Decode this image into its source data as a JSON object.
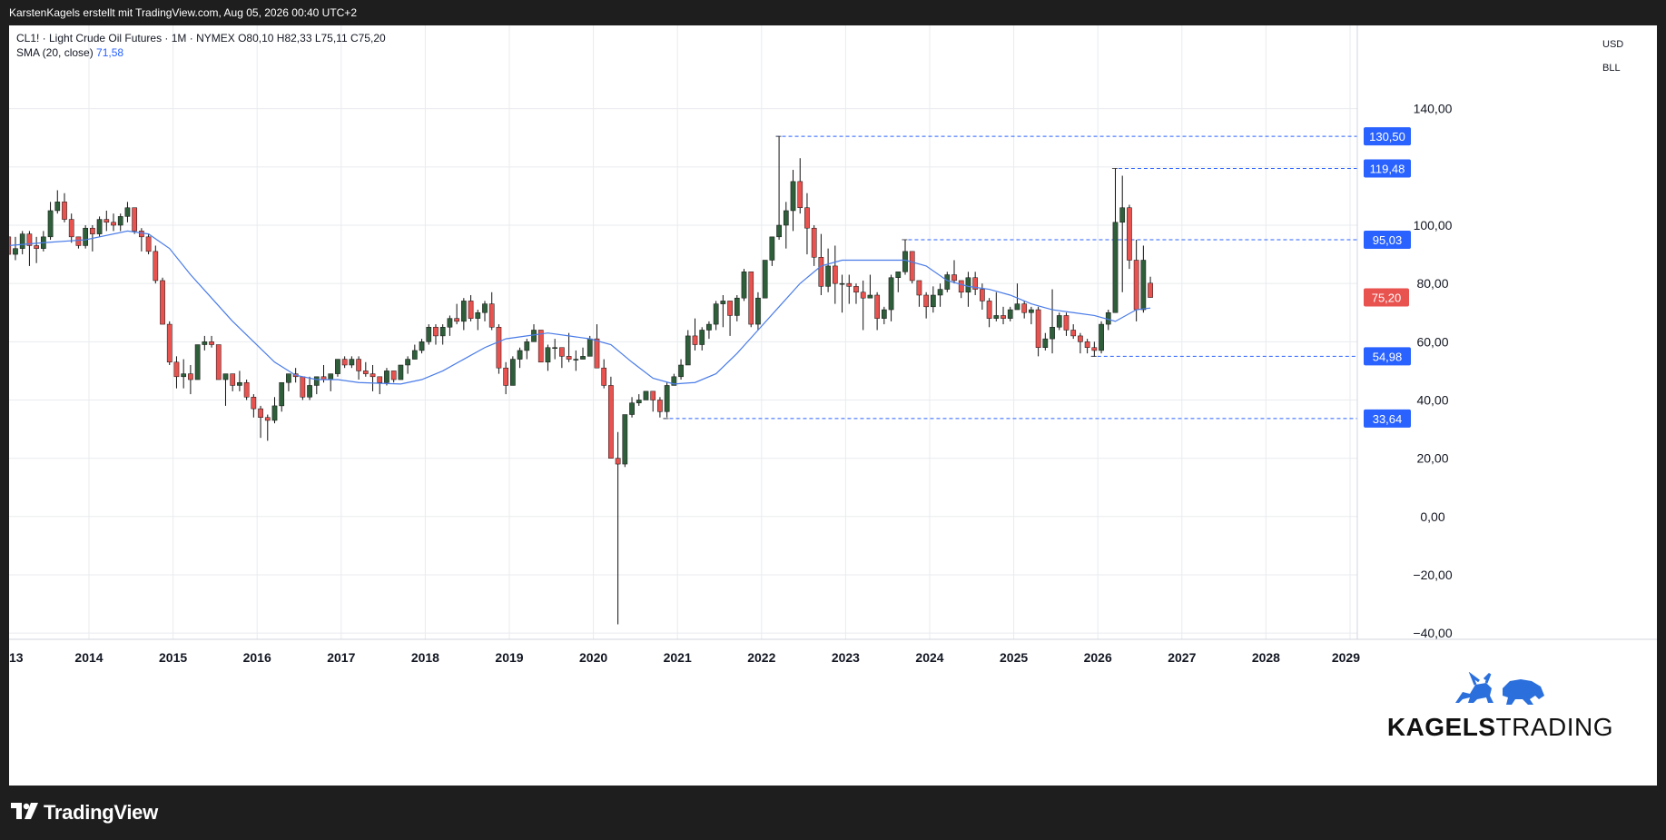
{
  "header": {
    "caption": "KarstenKagels erstellt mit TradingView.com, Aug 05, 2026 00:40 UTC+2"
  },
  "legend": {
    "symbol_line": "CL1! · Light Crude Oil Futures · 1M · NYMEX",
    "ohlc": "O80,10  H82,33  L75,11  C75,20",
    "sma_label": "SMA (20, close)",
    "sma_value": "71,58"
  },
  "price_axis": {
    "currency": "USD",
    "unit": "BLL",
    "ticks": [
      "140,00",
      "100,00",
      "80,00",
      "60,00",
      "40,00",
      "20,00",
      "0,00",
      "−20,00",
      "−40,00"
    ]
  },
  "levels": [
    {
      "value": 130.5,
      "label": "130,50",
      "start_year": 2022.17
    },
    {
      "value": 119.48,
      "label": "119,48",
      "start_year": 2026.17
    },
    {
      "value": 95.03,
      "label": "95,03",
      "start_year": 2023.67
    },
    {
      "value": 54.98,
      "label": "54,98",
      "start_year": 2025.92
    },
    {
      "value": 33.64,
      "label": "33,64",
      "start_year": 2020.83
    }
  ],
  "last_price": {
    "value": 75.2,
    "label": "75,20"
  },
  "time_axis": {
    "labels": [
      "13",
      "2014",
      "2015",
      "2016",
      "2017",
      "2018",
      "2019",
      "2020",
      "2021",
      "2022",
      "2023",
      "2024",
      "2025",
      "2026",
      "2027",
      "2028",
      "2029"
    ]
  },
  "colors": {
    "up": "#2e5e3a",
    "down": "#e8524f",
    "sma": "#4a7ce8",
    "level": "#2962ff",
    "grid": "#e9ebef"
  },
  "watermark": {
    "brand_bold": "KAGELS",
    "brand_light": "TRADING"
  },
  "footer": {
    "logo_text": "TradingView"
  },
  "chart_data": {
    "type": "candlestick",
    "title": "CL1! · Light Crude Oil Futures · 1M · NYMEX",
    "x_unit": "month",
    "ylim": [
      -40,
      140
    ],
    "grid": true,
    "candles": [
      [
        "2013-01",
        96,
        98,
        89,
        90
      ],
      [
        "2013-02",
        90,
        96,
        88,
        92
      ],
      [
        "2013-03",
        92,
        98,
        90,
        97
      ],
      [
        "2013-04",
        97,
        98,
        86,
        93
      ],
      [
        "2013-05",
        93,
        96,
        87,
        92
      ],
      [
        "2013-06",
        92,
        98,
        91,
        96
      ],
      [
        "2013-07",
        96,
        108,
        95,
        105
      ],
      [
        "2013-08",
        105,
        112,
        104,
        108
      ],
      [
        "2013-09",
        108,
        111,
        101,
        102
      ],
      [
        "2013-10",
        102,
        104,
        94,
        96
      ],
      [
        "2013-11",
        96,
        96,
        92,
        93
      ],
      [
        "2013-12",
        93,
        100,
        92,
        99
      ],
      [
        "2014-01",
        99,
        100,
        91,
        97
      ],
      [
        "2014-02",
        97,
        103,
        96,
        102
      ],
      [
        "2014-03",
        102,
        105,
        98,
        101
      ],
      [
        "2014-04",
        101,
        104,
        98,
        100
      ],
      [
        "2014-05",
        100,
        104,
        98,
        103
      ],
      [
        "2014-06",
        103,
        108,
        101,
        106
      ],
      [
        "2014-07",
        106,
        106,
        97,
        98
      ],
      [
        "2014-08",
        98,
        99,
        91,
        96
      ],
      [
        "2014-09",
        96,
        97,
        90,
        91
      ],
      [
        "2014-10",
        91,
        93,
        80,
        81
      ],
      [
        "2014-11",
        81,
        82,
        66,
        66
      ],
      [
        "2014-12",
        66,
        67,
        52,
        53
      ],
      [
        "2015-01",
        53,
        55,
        44,
        48
      ],
      [
        "2015-02",
        48,
        54,
        44,
        49
      ],
      [
        "2015-03",
        49,
        52,
        42,
        47
      ],
      [
        "2015-04",
        47,
        59,
        47,
        59
      ],
      [
        "2015-05",
        59,
        62,
        57,
        60
      ],
      [
        "2015-06",
        60,
        62,
        58,
        59
      ],
      [
        "2015-07",
        59,
        59,
        47,
        47
      ],
      [
        "2015-08",
        47,
        49,
        38,
        49
      ],
      [
        "2015-09",
        49,
        49,
        43,
        45
      ],
      [
        "2015-10",
        45,
        50,
        43,
        46
      ],
      [
        "2015-11",
        46,
        47,
        40,
        41
      ],
      [
        "2015-12",
        41,
        42,
        34,
        37
      ],
      [
        "2016-01",
        37,
        38,
        27,
        34
      ],
      [
        "2016-02",
        34,
        35,
        26,
        33
      ],
      [
        "2016-03",
        33,
        41,
        32,
        38
      ],
      [
        "2016-04",
        38,
        46,
        36,
        46
      ],
      [
        "2016-05",
        46,
        49,
        43,
        49
      ],
      [
        "2016-06",
        49,
        51,
        46,
        48
      ],
      [
        "2016-07",
        48,
        48,
        40,
        41
      ],
      [
        "2016-08",
        41,
        48,
        40,
        45
      ],
      [
        "2016-09",
        45,
        48,
        42,
        48
      ],
      [
        "2016-10",
        48,
        52,
        46,
        47
      ],
      [
        "2016-11",
        47,
        49,
        43,
        49
      ],
      [
        "2016-12",
        49,
        54,
        48,
        54
      ],
      [
        "2017-01",
        54,
        55,
        51,
        52
      ],
      [
        "2017-02",
        52,
        55,
        51,
        54
      ],
      [
        "2017-03",
        54,
        55,
        47,
        50
      ],
      [
        "2017-04",
        50,
        53,
        48,
        49
      ],
      [
        "2017-05",
        49,
        52,
        43,
        48
      ],
      [
        "2017-06",
        48,
        48,
        42,
        46
      ],
      [
        "2017-07",
        46,
        51,
        45,
        50
      ],
      [
        "2017-08",
        50,
        50,
        46,
        47
      ],
      [
        "2017-09",
        47,
        52,
        47,
        52
      ],
      [
        "2017-10",
        52,
        55,
        49,
        54
      ],
      [
        "2017-11",
        54,
        59,
        54,
        57
      ],
      [
        "2017-12",
        57,
        61,
        56,
        60
      ],
      [
        "2018-01",
        60,
        66,
        59,
        65
      ],
      [
        "2018-02",
        65,
        66,
        59,
        62
      ],
      [
        "2018-03",
        62,
        66,
        59,
        65
      ],
      [
        "2018-04",
        65,
        69,
        62,
        68
      ],
      [
        "2018-05",
        68,
        73,
        66,
        67
      ],
      [
        "2018-06",
        67,
        75,
        64,
        74
      ],
      [
        "2018-07",
        74,
        76,
        67,
        68
      ],
      [
        "2018-08",
        68,
        71,
        64,
        70
      ],
      [
        "2018-09",
        70,
        74,
        67,
        73
      ],
      [
        "2018-10",
        73,
        77,
        64,
        65
      ],
      [
        "2018-11",
        65,
        66,
        49,
        51
      ],
      [
        "2018-12",
        51,
        53,
        42,
        45
      ],
      [
        "2019-01",
        45,
        55,
        45,
        54
      ],
      [
        "2019-02",
        54,
        58,
        51,
        57
      ],
      [
        "2019-03",
        57,
        61,
        54,
        60
      ],
      [
        "2019-04",
        60,
        66,
        60,
        64
      ],
      [
        "2019-05",
        64,
        64,
        53,
        53
      ],
      [
        "2019-06",
        53,
        59,
        50,
        58
      ],
      [
        "2019-07",
        58,
        61,
        54,
        58
      ],
      [
        "2019-08",
        58,
        58,
        51,
        55
      ],
      [
        "2019-09",
        55,
        63,
        53,
        54
      ],
      [
        "2019-10",
        54,
        57,
        50,
        54
      ],
      [
        "2019-11",
        54,
        58,
        54,
        55
      ],
      [
        "2019-12",
        55,
        62,
        55,
        61
      ],
      [
        "2020-01",
        61,
        66,
        51,
        51
      ],
      [
        "2020-02",
        51,
        54,
        44,
        45
      ],
      [
        "2020-03",
        45,
        48,
        20,
        20
      ],
      [
        "2020-04",
        20,
        29,
        -37,
        18
      ],
      [
        "2020-05",
        18,
        35,
        17,
        35
      ],
      [
        "2020-06",
        35,
        41,
        34,
        39
      ],
      [
        "2020-07",
        39,
        42,
        38,
        40
      ],
      [
        "2020-08",
        40,
        43,
        40,
        43
      ],
      [
        "2020-09",
        43,
        43,
        36,
        40
      ],
      [
        "2020-10",
        40,
        41,
        34,
        36
      ],
      [
        "2020-11",
        36,
        46,
        34,
        45
      ],
      [
        "2020-12",
        45,
        49,
        45,
        48
      ],
      [
        "2021-01",
        48,
        54,
        47,
        52
      ],
      [
        "2021-02",
        52,
        64,
        52,
        62
      ],
      [
        "2021-03",
        62,
        68,
        57,
        59
      ],
      [
        "2021-04",
        59,
        65,
        57,
        64
      ],
      [
        "2021-05",
        64,
        67,
        61,
        66
      ],
      [
        "2021-06",
        66,
        74,
        64,
        73
      ],
      [
        "2021-07",
        73,
        76,
        65,
        74
      ],
      [
        "2021-08",
        74,
        74,
        62,
        69
      ],
      [
        "2021-09",
        69,
        76,
        67,
        75
      ],
      [
        "2021-10",
        75,
        85,
        74,
        84
      ],
      [
        "2021-11",
        84,
        84,
        65,
        66
      ],
      [
        "2021-12",
        66,
        77,
        64,
        75
      ],
      [
        "2022-01",
        75,
        88,
        75,
        88
      ],
      [
        "2022-02",
        88,
        96,
        86,
        96
      ],
      [
        "2022-03",
        96,
        130.5,
        95,
        100
      ],
      [
        "2022-04",
        100,
        108,
        92,
        105
      ],
      [
        "2022-05",
        105,
        119,
        98,
        115
      ],
      [
        "2022-06",
        115,
        123,
        104,
        106
      ],
      [
        "2022-07",
        106,
        111,
        90,
        99
      ],
      [
        "2022-08",
        99,
        100,
        86,
        89
      ],
      [
        "2022-09",
        89,
        97,
        76,
        79
      ],
      [
        "2022-10",
        79,
        92,
        77,
        86
      ],
      [
        "2022-11",
        86,
        93,
        73,
        80
      ],
      [
        "2022-12",
        80,
        83,
        70,
        80
      ],
      [
        "2023-01",
        80,
        83,
        73,
        79
      ],
      [
        "2023-02",
        79,
        80,
        73,
        77
      ],
      [
        "2023-03",
        77,
        81,
        64,
        75
      ],
      [
        "2023-04",
        75,
        83,
        75,
        76
      ],
      [
        "2023-05",
        76,
        77,
        64,
        68
      ],
      [
        "2023-06",
        68,
        72,
        66,
        71
      ],
      [
        "2023-07",
        71,
        83,
        67,
        82
      ],
      [
        "2023-08",
        82,
        84,
        77,
        84
      ],
      [
        "2023-09",
        84,
        95.03,
        83,
        91
      ],
      [
        "2023-10",
        91,
        91,
        80,
        81
      ],
      [
        "2023-11",
        81,
        81,
        72,
        76
      ],
      [
        "2023-12",
        76,
        77,
        68,
        72
      ],
      [
        "2024-01",
        72,
        79,
        70,
        76
      ],
      [
        "2024-02",
        76,
        80,
        72,
        78
      ],
      [
        "2024-03",
        78,
        84,
        77,
        83
      ],
      [
        "2024-04",
        83,
        88,
        80,
        81
      ],
      [
        "2024-05",
        81,
        81,
        75,
        77
      ],
      [
        "2024-06",
        77,
        84,
        72,
        82
      ],
      [
        "2024-07",
        82,
        84,
        76,
        78
      ],
      [
        "2024-08",
        78,
        80,
        71,
        74
      ],
      [
        "2024-09",
        74,
        75,
        65,
        68
      ],
      [
        "2024-10",
        68,
        77,
        67,
        69
      ],
      [
        "2024-11",
        69,
        72,
        66,
        68
      ],
      [
        "2024-12",
        68,
        72,
        67,
        71
      ],
      [
        "2025-01",
        71,
        80,
        71,
        73
      ],
      [
        "2025-02",
        73,
        74,
        68,
        70
      ],
      [
        "2025-03",
        70,
        72,
        66,
        71
      ],
      [
        "2025-04",
        71,
        72,
        55,
        58
      ],
      [
        "2025-05",
        58,
        63,
        57,
        61
      ],
      [
        "2025-06",
        61,
        78,
        56,
        65
      ],
      [
        "2025-07",
        65,
        70,
        64,
        69
      ],
      [
        "2025-08",
        69,
        70,
        62,
        64
      ],
      [
        "2025-09",
        64,
        66,
        61,
        62
      ],
      [
        "2025-10",
        62,
        63,
        56,
        60
      ],
      [
        "2025-11",
        60,
        61,
        56,
        58
      ],
      [
        "2025-12",
        58,
        60,
        54.98,
        57
      ],
      [
        "2026-01",
        57,
        67,
        56,
        66
      ],
      [
        "2026-02",
        66,
        71,
        64,
        70
      ],
      [
        "2026-03",
        70,
        119.48,
        70,
        101
      ],
      [
        "2026-04",
        101,
        117,
        77,
        106
      ],
      [
        "2026-05",
        106,
        107,
        85,
        88
      ],
      [
        "2026-06",
        88,
        95,
        67,
        71
      ],
      [
        "2026-07",
        71,
        93,
        70,
        88
      ],
      [
        "2026-08",
        80.1,
        82.33,
        75.11,
        75.2
      ]
    ],
    "sma": {
      "name": "SMA (20, close)",
      "points": [
        [
          "2013-01",
          93
        ],
        [
          "2013-06",
          94
        ],
        [
          "2013-12",
          95
        ],
        [
          "2014-06",
          98
        ],
        [
          "2014-09",
          97
        ],
        [
          "2014-12",
          92
        ],
        [
          "2015-03",
          83
        ],
        [
          "2015-06",
          75
        ],
        [
          "2015-09",
          67
        ],
        [
          "2015-12",
          60
        ],
        [
          "2016-03",
          53
        ],
        [
          "2016-06",
          48.5
        ],
        [
          "2016-09",
          47
        ],
        [
          "2016-12",
          47
        ],
        [
          "2017-03",
          46
        ],
        [
          "2017-09",
          45.5
        ],
        [
          "2017-12",
          47
        ],
        [
          "2018-03",
          50
        ],
        [
          "2018-06",
          54
        ],
        [
          "2018-09",
          58
        ],
        [
          "2018-12",
          61
        ],
        [
          "2019-03",
          62
        ],
        [
          "2019-06",
          63
        ],
        [
          "2019-09",
          62
        ],
        [
          "2019-12",
          61
        ],
        [
          "2020-03",
          59
        ],
        [
          "2020-06",
          53
        ],
        [
          "2020-09",
          47.5
        ],
        [
          "2020-12",
          45.5
        ],
        [
          "2021-03",
          46
        ],
        [
          "2021-06",
          49
        ],
        [
          "2021-09",
          56
        ],
        [
          "2021-12",
          64
        ],
        [
          "2022-03",
          72
        ],
        [
          "2022-06",
          80
        ],
        [
          "2022-09",
          86
        ],
        [
          "2022-12",
          88
        ],
        [
          "2023-03",
          88
        ],
        [
          "2023-06",
          88
        ],
        [
          "2023-09",
          88
        ],
        [
          "2023-12",
          86
        ],
        [
          "2024-03",
          81
        ],
        [
          "2024-06",
          79
        ],
        [
          "2024-09",
          78
        ],
        [
          "2024-12",
          76
        ],
        [
          "2025-03",
          73
        ],
        [
          "2025-06",
          71
        ],
        [
          "2025-09",
          70
        ],
        [
          "2025-12",
          69
        ],
        [
          "2026-03",
          67
        ],
        [
          "2026-06",
          71
        ],
        [
          "2026-08",
          71.58
        ]
      ]
    }
  }
}
